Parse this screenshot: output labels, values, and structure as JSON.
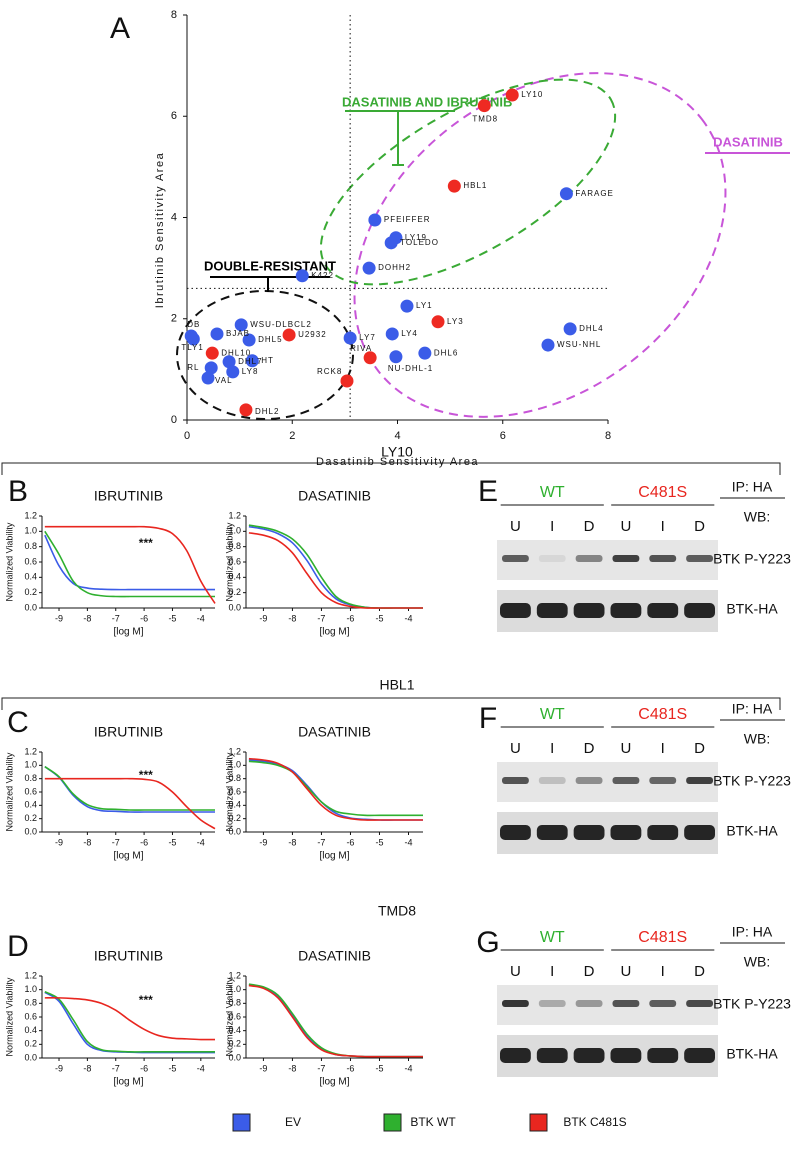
{
  "panel_labels": [
    "A",
    "B",
    "C",
    "D",
    "E",
    "F",
    "G"
  ],
  "cell_lines": [
    "LY10",
    "HBL1",
    "TMD8"
  ],
  "chart_data": [
    {
      "type": "scatter",
      "xlabel": "Dasatinib Sensitivity Area",
      "ylabel": "Ibrutinib Sensitivity Area",
      "xlim": [
        0,
        8
      ],
      "ylim": [
        0,
        8
      ],
      "xticks": [
        0,
        2,
        4,
        6,
        8
      ],
      "yticks": [
        0,
        2,
        4,
        6,
        8
      ],
      "labels": [
        "LY10",
        "TMD8",
        "HBL1",
        "FARAGE",
        "PFEIFFER",
        "LY19",
        "TOLEDO",
        "DOHH2",
        "K422",
        "LY1",
        "LY3",
        "DHL4",
        "WSU-NHL",
        "LY4",
        "DHL6",
        "NU-DHL-1",
        "RIVA",
        "LY7",
        "RCK8",
        "U2932",
        "DHL5",
        "WSU-DLBCL2",
        "DB",
        "TLY1",
        "BJAB",
        "DHL10",
        "HT",
        "DHL7",
        "RL",
        "VAL",
        "LY8",
        "DHL2"
      ],
      "x": [
        6.18,
        5.65,
        5.08,
        7.21,
        3.57,
        3.97,
        3.88,
        3.46,
        2.19,
        4.18,
        4.77,
        7.28,
        6.86,
        3.9,
        4.52,
        3.97,
        3.48,
        3.1,
        3.04,
        1.94,
        1.18,
        1.03,
        0.08,
        0.12,
        0.57,
        0.48,
        1.24,
        0.8,
        0.46,
        0.4,
        0.87,
        1.12
      ],
      "values": [
        6.42,
        6.21,
        4.62,
        4.47,
        3.95,
        3.6,
        3.5,
        3.0,
        2.85,
        2.25,
        1.94,
        1.8,
        1.48,
        1.7,
        1.32,
        1.25,
        1.23,
        1.62,
        0.77,
        1.68,
        1.58,
        1.88,
        1.66,
        1.6,
        1.7,
        1.32,
        1.17,
        1.15,
        1.03,
        0.83,
        0.95,
        0.2
      ],
      "colors": [
        "#ee2a22",
        "#ee2a22",
        "#ee2a22",
        "#3b5ce8",
        "#3b5ce8",
        "#3b5ce8",
        "#3b5ce8",
        "#3b5ce8",
        "#3b5ce8",
        "#3b5ce8",
        "#ee2a22",
        "#3b5ce8",
        "#3b5ce8",
        "#3b5ce8",
        "#3b5ce8",
        "#3b5ce8",
        "#ee2a22",
        "#3b5ce8",
        "#ee2a22",
        "#ee2a22",
        "#3b5ce8",
        "#3b5ce8",
        "#3b5ce8",
        "#3b5ce8",
        "#3b5ce8",
        "#ee2a22",
        "#3b5ce8",
        "#3b5ce8",
        "#3b5ce8",
        "#3b5ce8",
        "#3b5ce8",
        "#ee2a22"
      ],
      "reference_lines": {
        "x": 3.1,
        "y": 2.6
      },
      "annotations": [
        {
          "text": "DASATINIB AND IBRUTINIB",
          "color": "#3aaa35"
        },
        {
          "text": "DASATINIB",
          "color": "#c855d8"
        },
        {
          "text": "DOUBLE-RESISTANT",
          "color": "#000000"
        }
      ]
    },
    {
      "type": "line",
      "title": "IBRUTINIB",
      "xlabel": "[log M]",
      "ylabel": "Normalized Viability",
      "annotation": "***",
      "xlim": [
        -9.6,
        -3.5
      ],
      "ylim": [
        0,
        1.2
      ],
      "xticks": [
        -9,
        -8,
        -7,
        -6,
        -5,
        -4
      ],
      "yticks": [
        {
          "value": 0,
          "label": "0.0"
        },
        0.2,
        0.4,
        0.6,
        0.8,
        {
          "value": 1,
          "label": "1.0"
        },
        1.2
      ],
      "x": [
        -9.5,
        -9,
        -8.5,
        -8,
        -7.5,
        -7,
        -6.5,
        -6,
        -5.5,
        -5,
        -4.5,
        -4,
        -3.5
      ],
      "series": [
        {
          "name": "EV",
          "color": "#3b5ce8",
          "values": [
            0.95,
            0.55,
            0.32,
            0.26,
            0.245,
            0.24,
            0.24,
            0.24,
            0.24,
            0.24,
            0.24,
            0.24,
            0.24
          ]
        },
        {
          "name": "BTK WT",
          "color": "#2fb02f",
          "values": [
            1.0,
            0.7,
            0.35,
            0.2,
            0.16,
            0.15,
            0.15,
            0.15,
            0.15,
            0.15,
            0.15,
            0.15,
            0.15
          ]
        },
        {
          "name": "BTK C481S",
          "color": "#e8261f",
          "values": [
            1.06,
            1.06,
            1.06,
            1.06,
            1.06,
            1.06,
            1.06,
            1.06,
            1.04,
            0.97,
            0.75,
            0.35,
            0.06
          ]
        }
      ]
    },
    {
      "type": "line",
      "title": "DASATINIB",
      "xlabel": "[log M]",
      "ylabel": "Normalized Viability",
      "xlim": [
        -9.6,
        -3.5
      ],
      "ylim": [
        0,
        1.2
      ],
      "xticks": [
        -9,
        -8,
        -7,
        -6,
        -5,
        -4
      ],
      "yticks": [
        {
          "value": 0,
          "label": "0.0"
        },
        0.2,
        0.4,
        0.6,
        0.8,
        {
          "value": 1,
          "label": "1.0"
        },
        1.2
      ],
      "x": [
        -9.5,
        -9,
        -8.5,
        -8,
        -7.5,
        -7,
        -6.5,
        -6,
        -5.5,
        -5,
        -4.5,
        -4,
        -3.5
      ],
      "series": [
        {
          "name": "EV",
          "color": "#3b5ce8",
          "values": [
            1.06,
            1.03,
            0.97,
            0.85,
            0.62,
            0.32,
            0.12,
            0.04,
            0.01,
            0,
            0,
            0,
            0
          ]
        },
        {
          "name": "BTK WT",
          "color": "#2fb02f",
          "values": [
            1.08,
            1.05,
            1.0,
            0.9,
            0.7,
            0.4,
            0.15,
            0.05,
            0.01,
            0,
            0,
            0,
            0
          ]
        },
        {
          "name": "BTK C481S",
          "color": "#e8261f",
          "values": [
            0.98,
            0.95,
            0.88,
            0.72,
            0.45,
            0.2,
            0.07,
            0.02,
            0,
            0,
            0,
            0,
            0
          ]
        }
      ]
    },
    {
      "type": "line",
      "title": "IBRUTINIB",
      "xlabel": "[log M]",
      "ylabel": "Normalized Viability",
      "annotation": "***",
      "xlim": [
        -9.6,
        -3.5
      ],
      "ylim": [
        0,
        1.2
      ],
      "xticks": [
        -9,
        -8,
        -7,
        -6,
        -5,
        -4
      ],
      "yticks": [
        {
          "value": 0,
          "label": "0.0"
        },
        0.2,
        0.4,
        0.6,
        0.8,
        {
          "value": 1,
          "label": "1.0"
        },
        1.2
      ],
      "x": [
        -9.5,
        -9,
        -8.5,
        -8,
        -7.5,
        -7,
        -6.5,
        -6,
        -5.5,
        -5,
        -4.5,
        -4,
        -3.5
      ],
      "series": [
        {
          "name": "EV",
          "color": "#3b5ce8",
          "values": [
            0.98,
            0.82,
            0.55,
            0.38,
            0.32,
            0.31,
            0.3,
            0.3,
            0.3,
            0.3,
            0.3,
            0.3,
            0.3
          ]
        },
        {
          "name": "BTK WT",
          "color": "#2fb02f",
          "values": [
            0.98,
            0.83,
            0.57,
            0.41,
            0.35,
            0.34,
            0.33,
            0.33,
            0.33,
            0.33,
            0.33,
            0.33,
            0.33
          ]
        },
        {
          "name": "BTK C481S",
          "color": "#e8261f",
          "values": [
            0.8,
            0.8,
            0.8,
            0.8,
            0.8,
            0.8,
            0.8,
            0.79,
            0.75,
            0.6,
            0.38,
            0.18,
            0.05
          ]
        }
      ]
    },
    {
      "type": "line",
      "title": "DASATINIB",
      "xlabel": "[log M]",
      "ylabel": "Normalized Viability",
      "xlim": [
        -9.6,
        -3.5
      ],
      "ylim": [
        0,
        1.2
      ],
      "xticks": [
        -9,
        -8,
        -7,
        -6,
        -5,
        -4
      ],
      "yticks": [
        {
          "value": 0,
          "label": "0.0"
        },
        0.2,
        0.4,
        0.6,
        0.8,
        {
          "value": 1,
          "label": "1.0"
        },
        1.2
      ],
      "x": [
        -9.5,
        -9,
        -8.5,
        -8,
        -7.5,
        -7,
        -6.5,
        -6,
        -5.5,
        -5,
        -4.5,
        -4,
        -3.5
      ],
      "series": [
        {
          "name": "EV",
          "color": "#3b5ce8",
          "values": [
            1.08,
            1.06,
            1.02,
            0.92,
            0.7,
            0.45,
            0.28,
            0.21,
            0.19,
            0.18,
            0.18,
            0.18,
            0.18
          ]
        },
        {
          "name": "BTK WT",
          "color": "#2fb02f",
          "values": [
            1.06,
            1.04,
            1.0,
            0.9,
            0.68,
            0.45,
            0.31,
            0.27,
            0.25,
            0.25,
            0.25,
            0.25,
            0.25
          ]
        },
        {
          "name": "BTK C481S",
          "color": "#e8261f",
          "values": [
            1.1,
            1.08,
            1.03,
            0.9,
            0.65,
            0.4,
            0.25,
            0.2,
            0.18,
            0.18,
            0.18,
            0.18,
            0.18
          ]
        }
      ]
    },
    {
      "type": "line",
      "title": "IBRUTINIB",
      "xlabel": "[log M]",
      "ylabel": "Normalized Viability",
      "annotation": "***",
      "xlim": [
        -9.6,
        -3.5
      ],
      "ylim": [
        0,
        1.2
      ],
      "xticks": [
        -9,
        -8,
        -7,
        -6,
        -5,
        -4
      ],
      "yticks": [
        {
          "value": 0,
          "label": "0.0"
        },
        0.2,
        0.4,
        0.6,
        0.8,
        {
          "value": 1,
          "label": "1.0"
        },
        1.2
      ],
      "x": [
        -9.5,
        -9,
        -8.5,
        -8,
        -7.5,
        -7,
        -6.5,
        -6,
        -5.5,
        -5,
        -4.5,
        -4,
        -3.5
      ],
      "series": [
        {
          "name": "EV",
          "color": "#3b5ce8",
          "values": [
            0.96,
            0.83,
            0.5,
            0.2,
            0.11,
            0.09,
            0.085,
            0.08,
            0.08,
            0.08,
            0.08,
            0.08,
            0.08
          ]
        },
        {
          "name": "BTK WT",
          "color": "#2fb02f",
          "values": [
            0.97,
            0.86,
            0.56,
            0.24,
            0.12,
            0.1,
            0.09,
            0.09,
            0.09,
            0.09,
            0.09,
            0.09,
            0.09
          ]
        },
        {
          "name": "BTK C481S",
          "color": "#e8261f",
          "values": [
            0.88,
            0.88,
            0.87,
            0.85,
            0.8,
            0.7,
            0.55,
            0.42,
            0.33,
            0.29,
            0.28,
            0.27,
            0.27
          ]
        }
      ]
    },
    {
      "type": "line",
      "title": "DASATINIB",
      "xlabel": "[log M]",
      "ylabel": "Normalized Viability",
      "xlim": [
        -9.6,
        -3.5
      ],
      "ylim": [
        0,
        1.2
      ],
      "xticks": [
        -9,
        -8,
        -7,
        -6,
        -5,
        -4
      ],
      "yticks": [
        {
          "value": 0,
          "label": "0.0"
        },
        0.2,
        0.4,
        0.6,
        0.8,
        {
          "value": 1,
          "label": "1.0"
        },
        1.2
      ],
      "x": [
        -9.5,
        -9,
        -8.5,
        -8,
        -7.5,
        -7,
        -6.5,
        -6,
        -5.5,
        -5,
        -4.5,
        -4,
        -3.5
      ],
      "series": [
        {
          "name": "EV",
          "color": "#3b5ce8",
          "values": [
            1.07,
            1.03,
            0.9,
            0.62,
            0.32,
            0.13,
            0.05,
            0.03,
            0.02,
            0.02,
            0.02,
            0.02,
            0.02
          ]
        },
        {
          "name": "BTK WT",
          "color": "#2fb02f",
          "values": [
            1.08,
            1.04,
            0.92,
            0.65,
            0.35,
            0.15,
            0.06,
            0.03,
            0.02,
            0.02,
            0.02,
            0.02,
            0.02
          ]
        },
        {
          "name": "BTK C481S",
          "color": "#e8261f",
          "values": [
            1.06,
            1.02,
            0.88,
            0.6,
            0.3,
            0.12,
            0.05,
            0.03,
            0.02,
            0.02,
            0.02,
            0.02,
            0.02
          ]
        }
      ]
    }
  ],
  "blots": [
    {
      "groups": [
        {
          "text": "WT",
          "color": "#2fb02f"
        },
        {
          "text": "C481S",
          "color": "#e8261f"
        }
      ],
      "lanes": [
        "U",
        "I",
        "D",
        "U",
        "I",
        "D"
      ],
      "ip": "IP: HA",
      "wb": "WB:",
      "bands": [
        "BTK P-Y223",
        "BTK-HA"
      ]
    },
    {
      "groups": [
        {
          "text": "WT",
          "color": "#2fb02f"
        },
        {
          "text": "C481S",
          "color": "#e8261f"
        }
      ],
      "lanes": [
        "U",
        "I",
        "D",
        "U",
        "I",
        "D"
      ],
      "ip": "IP: HA",
      "wb": "WB:",
      "bands": [
        "BTK P-Y223",
        "BTK-HA"
      ]
    },
    {
      "groups": [
        {
          "text": "WT",
          "color": "#2fb02f"
        },
        {
          "text": "C481S",
          "color": "#e8261f"
        }
      ],
      "lanes": [
        "U",
        "I",
        "D",
        "U",
        "I",
        "D"
      ],
      "ip": "IP: HA",
      "wb": "WB:",
      "bands": [
        "BTK P-Y223",
        "BTK-HA"
      ]
    }
  ]
}
